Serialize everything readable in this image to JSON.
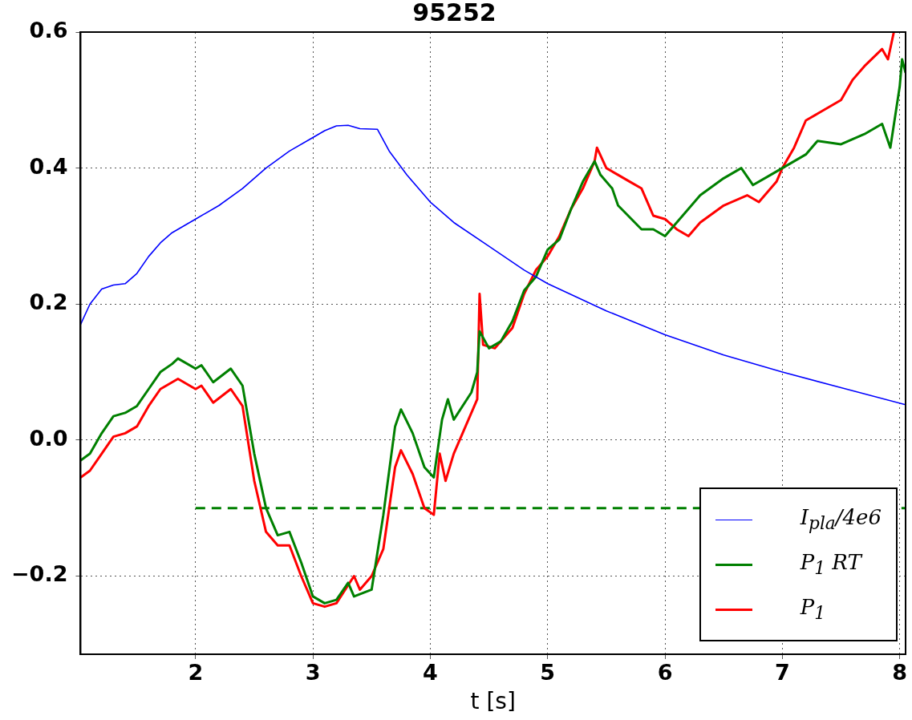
{
  "chart_data": {
    "type": "line",
    "title": "95252",
    "xlabel": "t [s]",
    "xlim": [
      1.02,
      8.05
    ],
    "ylim": [
      -0.315,
      0.6
    ],
    "xticks": [
      2,
      3,
      4,
      5,
      6,
      7,
      8
    ],
    "yticks": [
      {
        "value": -0.2,
        "label": "−0.2"
      },
      {
        "value": 0,
        "label": "0.0"
      },
      0.2,
      0.4,
      0.6
    ],
    "grid": true,
    "legend": "bottom right",
    "line_style": "solid",
    "marker": "none",
    "series": [
      {
        "name": "I$_{pla}$/4e6",
        "color": "#0000ff",
        "x": [
          1.02,
          1.1,
          1.2,
          1.3,
          1.4,
          1.5,
          1.6,
          1.7,
          1.8,
          1.9,
          2.0,
          2.2,
          2.4,
          2.6,
          2.8,
          3.0,
          3.1,
          3.2,
          3.3,
          3.4,
          3.55,
          3.65,
          3.8,
          4.0,
          4.2,
          4.5,
          4.8,
          5.0,
          5.5,
          6.0,
          6.5,
          7.0,
          7.5,
          8.05
        ],
        "values": [
          0.17,
          0.2,
          0.222,
          0.228,
          0.23,
          0.245,
          0.27,
          0.29,
          0.305,
          0.315,
          0.325,
          0.345,
          0.37,
          0.4,
          0.425,
          0.445,
          0.455,
          0.462,
          0.463,
          0.458,
          0.457,
          0.425,
          0.39,
          0.35,
          0.32,
          0.285,
          0.25,
          0.23,
          0.19,
          0.155,
          0.125,
          0.1,
          0.077,
          0.052
        ]
      },
      {
        "name": "P$_{1}$ RT",
        "color": "#008000",
        "x": [
          1.02,
          1.1,
          1.2,
          1.3,
          1.4,
          1.5,
          1.6,
          1.7,
          1.8,
          1.85,
          2.0,
          2.05,
          2.15,
          2.3,
          2.4,
          2.5,
          2.6,
          2.7,
          2.8,
          2.9,
          3.0,
          3.1,
          3.2,
          3.3,
          3.35,
          3.5,
          3.6,
          3.7,
          3.75,
          3.85,
          3.95,
          4.03,
          4.1,
          4.15,
          4.2,
          4.35,
          4.4,
          4.42,
          4.5,
          4.6,
          4.7,
          4.8,
          4.9,
          5.0,
          5.1,
          5.2,
          5.3,
          5.4,
          5.45,
          5.55,
          5.6,
          5.8,
          5.9,
          6.0,
          6.1,
          6.3,
          6.5,
          6.65,
          6.75,
          6.9,
          7.0,
          7.1,
          7.2,
          7.3,
          7.5,
          7.7,
          7.85,
          7.92,
          8.0,
          8.02,
          8.05
        ],
        "values": [
          -0.03,
          -0.02,
          0.01,
          0.035,
          0.04,
          0.05,
          0.075,
          0.1,
          0.112,
          0.12,
          0.105,
          0.11,
          0.085,
          0.105,
          0.08,
          -0.02,
          -0.1,
          -0.14,
          -0.135,
          -0.18,
          -0.23,
          -0.24,
          -0.235,
          -0.21,
          -0.23,
          -0.22,
          -0.11,
          0.02,
          0.045,
          0.01,
          -0.04,
          -0.055,
          0.03,
          0.06,
          0.03,
          0.07,
          0.1,
          0.16,
          0.135,
          0.145,
          0.175,
          0.22,
          0.24,
          0.28,
          0.295,
          0.34,
          0.38,
          0.41,
          0.39,
          0.37,
          0.345,
          0.31,
          0.31,
          0.3,
          0.32,
          0.36,
          0.385,
          0.4,
          0.375,
          0.39,
          0.4,
          0.41,
          0.42,
          0.44,
          0.435,
          0.45,
          0.465,
          0.43,
          0.52,
          0.56,
          0.54
        ]
      },
      {
        "name": "P$_{1}$",
        "color": "#ff0000",
        "x": [
          1.02,
          1.1,
          1.2,
          1.3,
          1.4,
          1.5,
          1.6,
          1.7,
          1.85,
          2.0,
          2.05,
          2.15,
          2.3,
          2.4,
          2.5,
          2.6,
          2.7,
          2.8,
          2.9,
          3.0,
          3.1,
          3.2,
          3.35,
          3.4,
          3.5,
          3.6,
          3.7,
          3.75,
          3.85,
          3.95,
          4.03,
          4.08,
          4.13,
          4.2,
          4.4,
          4.42,
          4.45,
          4.55,
          4.7,
          4.8,
          4.9,
          5.0,
          5.1,
          5.2,
          5.3,
          5.4,
          5.42,
          5.5,
          5.6,
          5.7,
          5.8,
          5.9,
          6.0,
          6.1,
          6.2,
          6.3,
          6.5,
          6.7,
          6.8,
          6.95,
          7.0,
          7.1,
          7.2,
          7.3,
          7.5,
          7.6,
          7.7,
          7.85,
          7.9,
          7.95
        ],
        "values": [
          -0.055,
          -0.045,
          -0.02,
          0.005,
          0.01,
          0.02,
          0.05,
          0.075,
          0.09,
          0.075,
          0.08,
          0.055,
          0.075,
          0.05,
          -0.06,
          -0.135,
          -0.155,
          -0.155,
          -0.2,
          -0.24,
          -0.245,
          -0.24,
          -0.2,
          -0.22,
          -0.2,
          -0.16,
          -0.04,
          -0.015,
          -0.05,
          -0.1,
          -0.11,
          -0.02,
          -0.06,
          -0.02,
          0.06,
          0.215,
          0.14,
          0.135,
          0.165,
          0.215,
          0.25,
          0.27,
          0.3,
          0.34,
          0.37,
          0.41,
          0.43,
          0.4,
          0.39,
          0.38,
          0.37,
          0.33,
          0.325,
          0.31,
          0.3,
          0.32,
          0.345,
          0.36,
          0.35,
          0.38,
          0.4,
          0.43,
          0.47,
          0.48,
          0.5,
          0.53,
          0.55,
          0.575,
          0.56,
          0.6
        ]
      },
      {
        "color": "#008000",
        "line_style": "dashed",
        "x": [
          2,
          8.05
        ],
        "values": [
          -0.1,
          -0.1
        ]
      }
    ]
  }
}
